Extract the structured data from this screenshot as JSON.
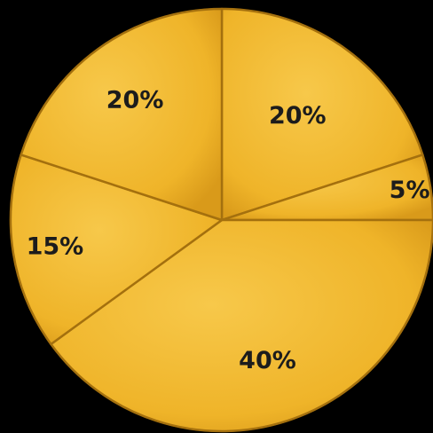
{
  "chart_data": {
    "type": "pie",
    "title": "",
    "slices": [
      {
        "label": "20%",
        "value": 20
      },
      {
        "label": "5%",
        "value": 5
      },
      {
        "label": "40%",
        "value": 40
      },
      {
        "label": "15%",
        "value": 15
      },
      {
        "label": "20%",
        "value": 20
      }
    ],
    "colors": {
      "fill": "#EFB429",
      "fill_light": "#F7C84A",
      "fill_dark": "#D99A1A",
      "divider": "#A4700E",
      "edge": "#8A5E0C",
      "background": "#000000"
    }
  }
}
